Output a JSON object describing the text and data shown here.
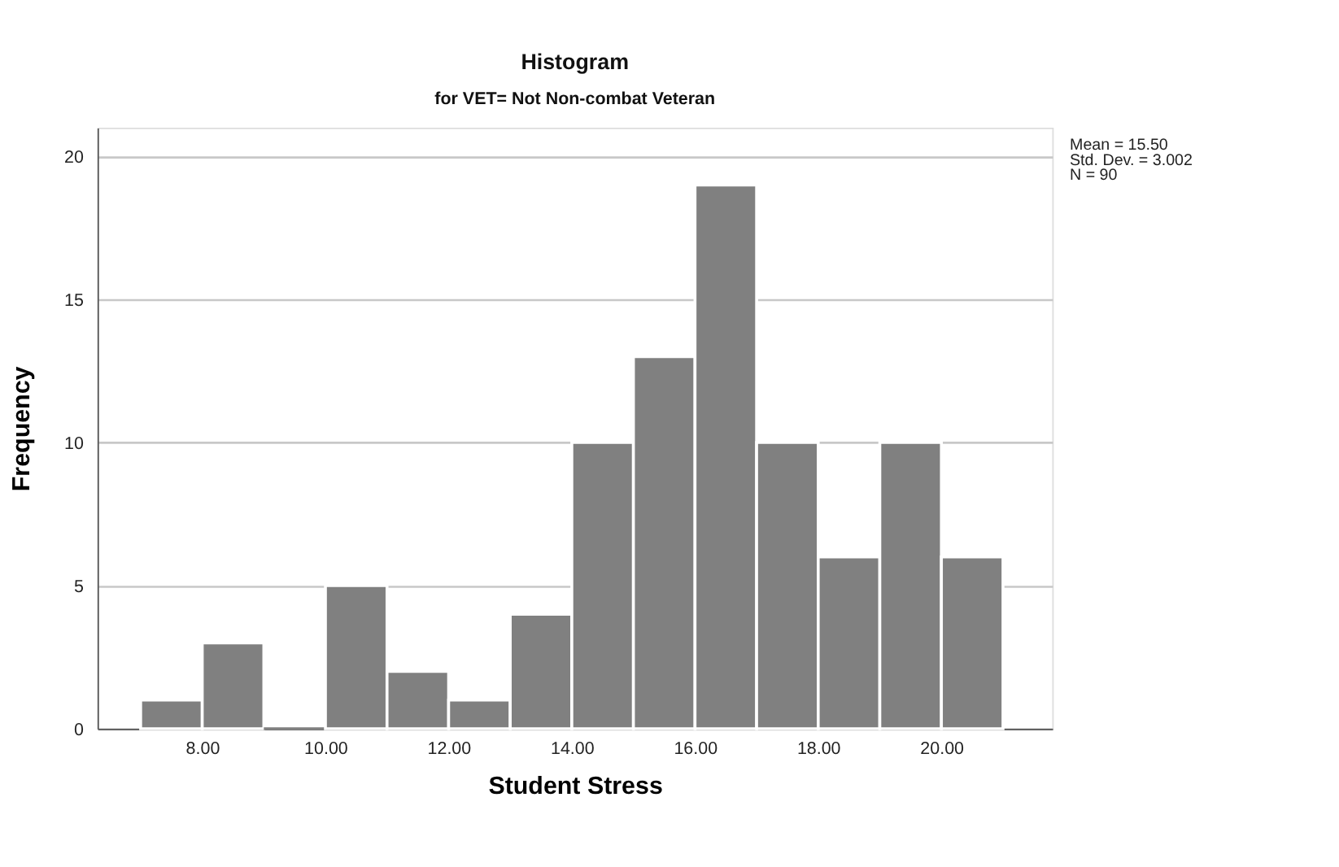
{
  "chart_data": {
    "type": "histogram",
    "title": "Histogram",
    "subtitle": "for VET= Not Non-combat Veteran",
    "xlabel": "Student Stress",
    "ylabel": "Frequency",
    "bins": [
      7,
      8,
      9,
      10,
      11,
      12,
      13,
      14,
      15,
      16,
      17,
      18,
      19,
      20,
      21
    ],
    "values": [
      1,
      3,
      0,
      5,
      2,
      1,
      4,
      10,
      13,
      19,
      10,
      6,
      10,
      6
    ],
    "color": "#808080",
    "xlim": [
      6.3,
      21.8
    ],
    "xticks": [
      {
        "value": 8,
        "label": "8.00"
      },
      {
        "value": 10,
        "label": "10.00"
      },
      {
        "value": 12,
        "label": "12.00"
      },
      {
        "value": 14,
        "label": "14.00"
      },
      {
        "value": 16,
        "label": "16.00"
      },
      {
        "value": 18,
        "label": "18.00"
      },
      {
        "value": 20,
        "label": "20.00"
      }
    ],
    "ylim": [
      0,
      21
    ],
    "yticks": [
      0,
      5,
      10,
      15,
      20
    ],
    "grid": "y",
    "annotations": [
      "Mean = 15.50",
      "Std. Dev. = 3.002",
      "N = 90"
    ]
  }
}
